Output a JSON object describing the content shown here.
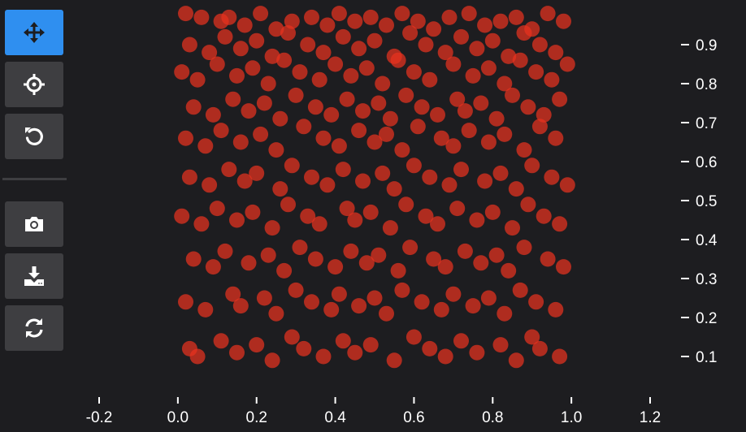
{
  "toolbar": {
    "tools": [
      {
        "name": "pan-tool",
        "icon": "move-arrows-icon",
        "active": true
      },
      {
        "name": "target-tool",
        "icon": "crosshair-icon",
        "active": false
      },
      {
        "name": "reset-tool",
        "icon": "undo-icon",
        "active": false
      },
      {
        "name": "snapshot-tool",
        "icon": "camera-icon",
        "active": false
      },
      {
        "name": "download-tool",
        "icon": "download-icon",
        "active": false
      },
      {
        "name": "refresh-tool",
        "icon": "refresh-icon",
        "active": false
      }
    ]
  },
  "colors": {
    "background": "#1d1d20",
    "button": "#3e3e41",
    "button_active": "#2f8ff0",
    "marker": "#e8321e",
    "text": "#ffffff"
  },
  "chart_data": {
    "type": "scatter",
    "title": "",
    "xlabel": "",
    "ylabel": "",
    "xlim": [
      -0.2,
      1.2
    ],
    "ylim": [
      0.0,
      1.0
    ],
    "x_ticks": [
      "-0.2",
      "0.0",
      "0.2",
      "0.4",
      "0.6",
      "0.8",
      "1.0",
      "1.2"
    ],
    "y_ticks": [
      "0.1",
      "0.2",
      "0.3",
      "0.4",
      "0.5",
      "0.6",
      "0.7",
      "0.8",
      "0.9"
    ],
    "y_axis_side": "right",
    "grid": false,
    "marker_color": "#e8321e",
    "marker_opacity": 0.72,
    "points": {
      "x": [
        0.02,
        0.06,
        0.11,
        0.13,
        0.17,
        0.21,
        0.25,
        0.29,
        0.34,
        0.38,
        0.41,
        0.45,
        0.49,
        0.53,
        0.57,
        0.61,
        0.65,
        0.69,
        0.74,
        0.78,
        0.82,
        0.86,
        0.9,
        0.94,
        0.98,
        0.03,
        0.08,
        0.12,
        0.16,
        0.2,
        0.24,
        0.28,
        0.33,
        0.37,
        0.42,
        0.46,
        0.5,
        0.55,
        0.59,
        0.63,
        0.68,
        0.72,
        0.76,
        0.8,
        0.84,
        0.88,
        0.92,
        0.96,
        0.01,
        0.05,
        0.1,
        0.15,
        0.19,
        0.23,
        0.27,
        0.31,
        0.36,
        0.4,
        0.44,
        0.48,
        0.52,
        0.56,
        0.6,
        0.64,
        0.7,
        0.75,
        0.79,
        0.83,
        0.87,
        0.91,
        0.95,
        0.99,
        0.04,
        0.09,
        0.14,
        0.18,
        0.22,
        0.26,
        0.3,
        0.35,
        0.39,
        0.43,
        0.47,
        0.51,
        0.54,
        0.58,
        0.62,
        0.66,
        0.71,
        0.73,
        0.77,
        0.81,
        0.85,
        0.89,
        0.93,
        0.97,
        0.02,
        0.07,
        0.11,
        0.16,
        0.21,
        0.25,
        0.32,
        0.37,
        0.41,
        0.46,
        0.5,
        0.53,
        0.57,
        0.61,
        0.67,
        0.7,
        0.74,
        0.79,
        0.83,
        0.88,
        0.92,
        0.96,
        0.03,
        0.08,
        0.13,
        0.17,
        0.2,
        0.26,
        0.29,
        0.34,
        0.38,
        0.42,
        0.47,
        0.52,
        0.55,
        0.6,
        0.64,
        0.69,
        0.72,
        0.78,
        0.82,
        0.86,
        0.9,
        0.95,
        0.99,
        0.01,
        0.06,
        0.1,
        0.15,
        0.19,
        0.24,
        0.28,
        0.33,
        0.36,
        0.43,
        0.45,
        0.49,
        0.54,
        0.58,
        0.63,
        0.66,
        0.71,
        0.76,
        0.8,
        0.85,
        0.89,
        0.93,
        0.97,
        0.04,
        0.09,
        0.12,
        0.18,
        0.23,
        0.27,
        0.31,
        0.35,
        0.4,
        0.44,
        0.48,
        0.51,
        0.56,
        0.59,
        0.65,
        0.68,
        0.73,
        0.77,
        0.81,
        0.84,
        0.88,
        0.94,
        0.98,
        0.02,
        0.07,
        0.14,
        0.16,
        0.22,
        0.25,
        0.3,
        0.34,
        0.39,
        0.41,
        0.46,
        0.5,
        0.53,
        0.57,
        0.62,
        0.67,
        0.7,
        0.75,
        0.79,
        0.83,
        0.87,
        0.91,
        0.96,
        0.03,
        0.05,
        0.11,
        0.15,
        0.2,
        0.24,
        0.29,
        0.32,
        0.37,
        0.42,
        0.45,
        0.49,
        0.55,
        0.6,
        0.64,
        0.68,
        0.72,
        0.76,
        0.82,
        0.86,
        0.9,
        0.92,
        0.97
      ],
      "y": [
        0.98,
        0.97,
        0.96,
        0.97,
        0.95,
        0.98,
        0.94,
        0.96,
        0.97,
        0.95,
        0.98,
        0.96,
        0.97,
        0.95,
        0.98,
        0.96,
        0.94,
        0.97,
        0.98,
        0.95,
        0.96,
        0.97,
        0.94,
        0.98,
        0.96,
        0.9,
        0.88,
        0.92,
        0.89,
        0.91,
        0.87,
        0.93,
        0.9,
        0.88,
        0.92,
        0.89,
        0.91,
        0.87,
        0.93,
        0.9,
        0.88,
        0.92,
        0.89,
        0.91,
        0.87,
        0.93,
        0.9,
        0.88,
        0.83,
        0.81,
        0.85,
        0.82,
        0.84,
        0.8,
        0.86,
        0.83,
        0.81,
        0.85,
        0.82,
        0.84,
        0.8,
        0.86,
        0.83,
        0.81,
        0.85,
        0.82,
        0.84,
        0.8,
        0.86,
        0.83,
        0.81,
        0.85,
        0.74,
        0.72,
        0.76,
        0.73,
        0.75,
        0.71,
        0.77,
        0.74,
        0.72,
        0.76,
        0.73,
        0.75,
        0.71,
        0.77,
        0.74,
        0.72,
        0.76,
        0.73,
        0.75,
        0.71,
        0.77,
        0.74,
        0.72,
        0.76,
        0.66,
        0.64,
        0.68,
        0.65,
        0.67,
        0.63,
        0.69,
        0.66,
        0.64,
        0.68,
        0.65,
        0.67,
        0.63,
        0.69,
        0.66,
        0.64,
        0.68,
        0.65,
        0.67,
        0.63,
        0.69,
        0.66,
        0.56,
        0.54,
        0.58,
        0.55,
        0.57,
        0.53,
        0.59,
        0.56,
        0.54,
        0.58,
        0.55,
        0.57,
        0.53,
        0.59,
        0.56,
        0.54,
        0.58,
        0.55,
        0.57,
        0.53,
        0.59,
        0.56,
        0.54,
        0.46,
        0.44,
        0.48,
        0.45,
        0.47,
        0.43,
        0.49,
        0.46,
        0.44,
        0.48,
        0.45,
        0.47,
        0.43,
        0.49,
        0.46,
        0.44,
        0.48,
        0.45,
        0.47,
        0.43,
        0.49,
        0.46,
        0.44,
        0.35,
        0.33,
        0.37,
        0.34,
        0.36,
        0.32,
        0.38,
        0.35,
        0.33,
        0.37,
        0.34,
        0.36,
        0.32,
        0.38,
        0.35,
        0.33,
        0.37,
        0.34,
        0.36,
        0.32,
        0.38,
        0.35,
        0.33,
        0.24,
        0.22,
        0.26,
        0.23,
        0.25,
        0.21,
        0.27,
        0.24,
        0.22,
        0.26,
        0.23,
        0.25,
        0.21,
        0.27,
        0.24,
        0.22,
        0.26,
        0.23,
        0.25,
        0.21,
        0.27,
        0.24,
        0.22,
        0.12,
        0.1,
        0.14,
        0.11,
        0.13,
        0.09,
        0.15,
        0.12,
        0.1,
        0.14,
        0.11,
        0.13,
        0.09,
        0.15,
        0.12,
        0.1,
        0.14,
        0.11,
        0.13,
        0.09,
        0.15,
        0.12,
        0.1
      ]
    }
  }
}
